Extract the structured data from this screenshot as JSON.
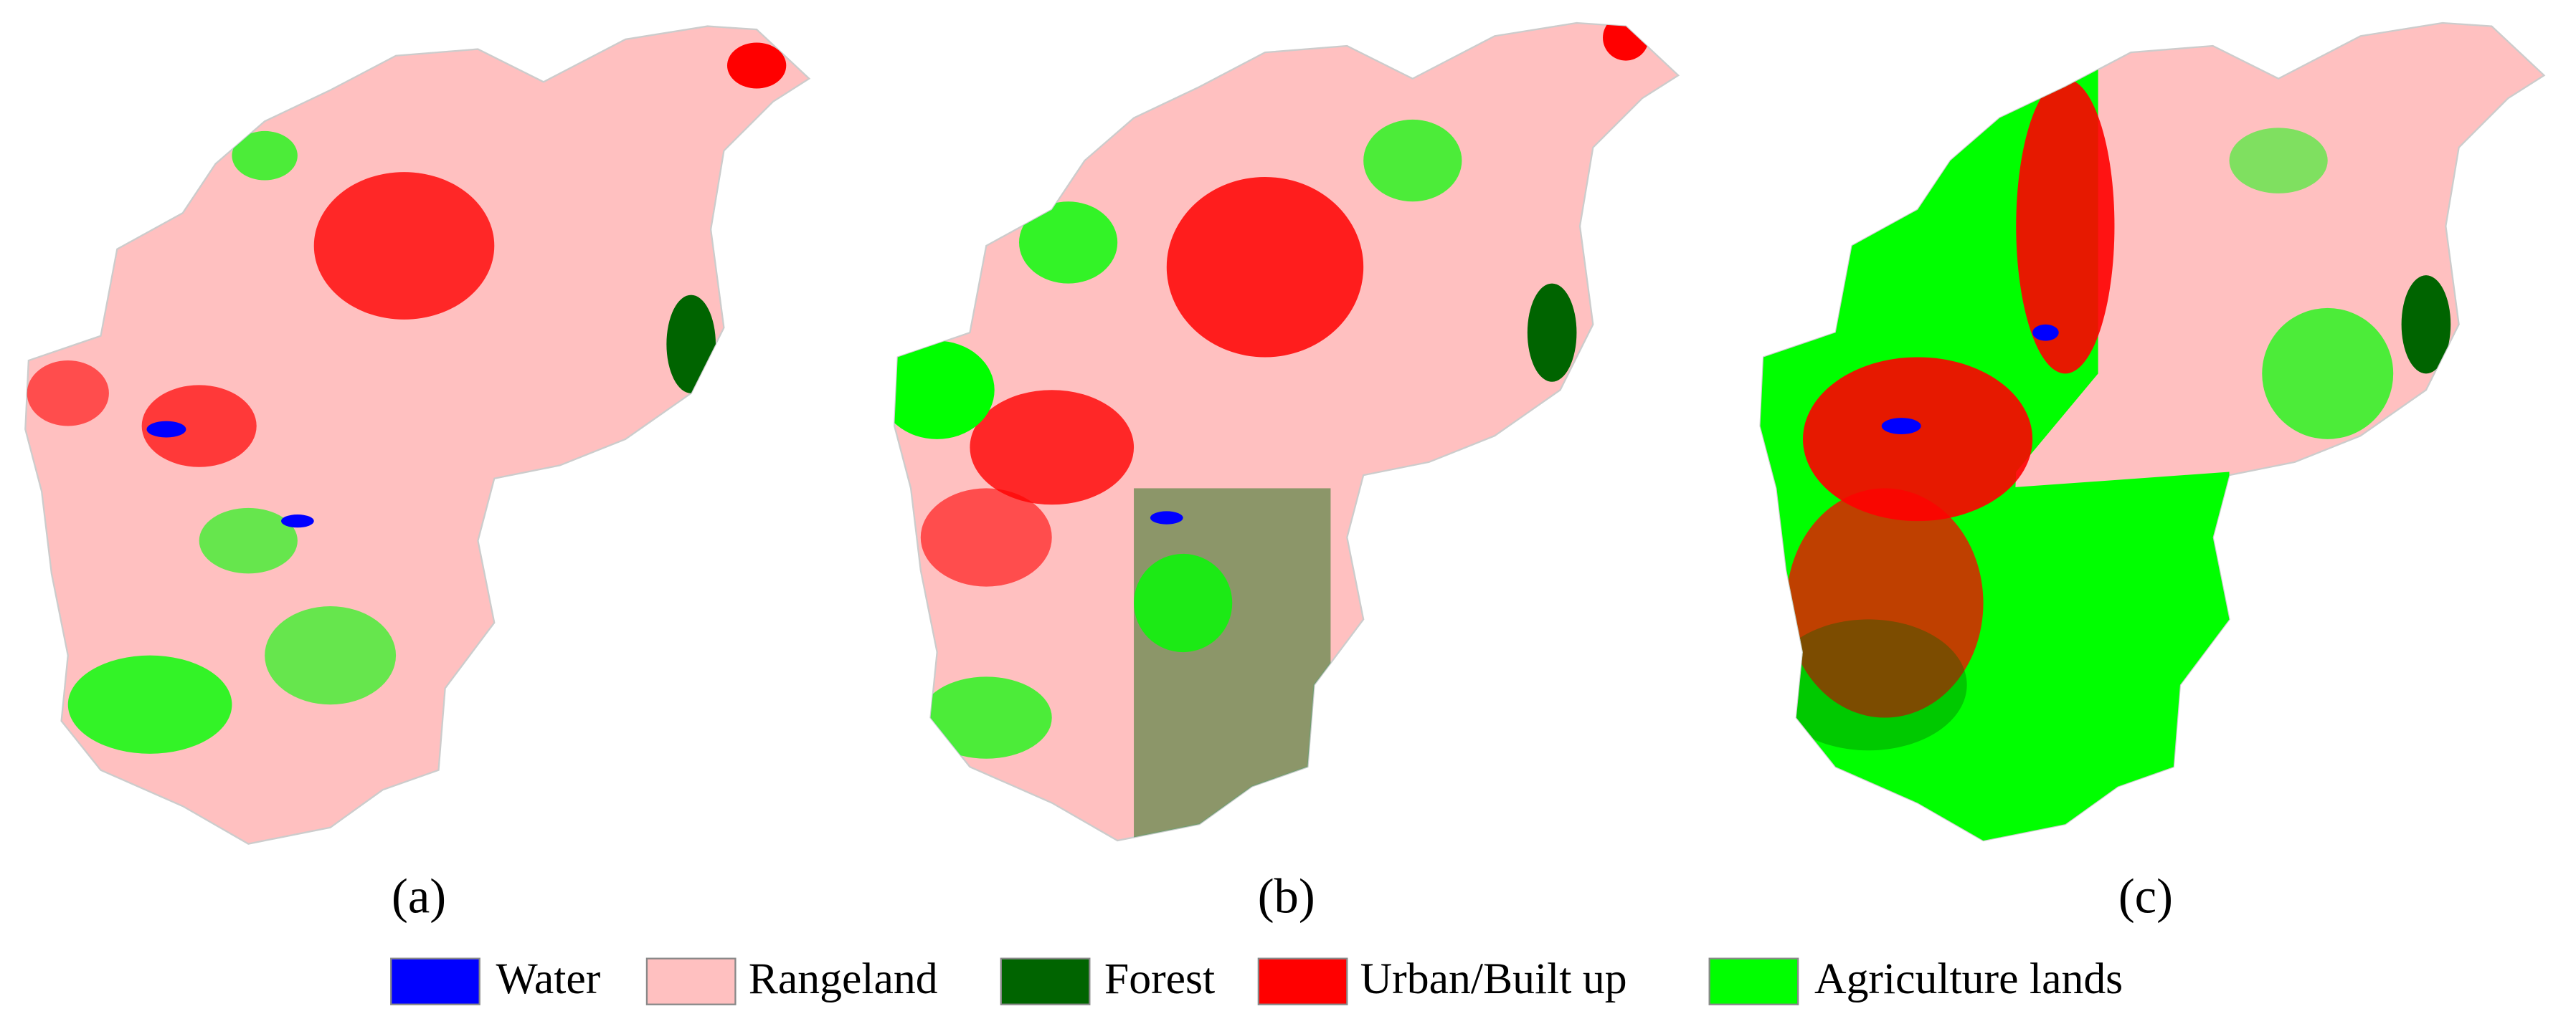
{
  "panels": [
    {
      "label": "(a)"
    },
    {
      "label": "(b)"
    },
    {
      "label": "(c)"
    }
  ],
  "legend": [
    {
      "name": "Water",
      "color": "#0000ff"
    },
    {
      "name": "Rangeland",
      "color": "#ffc0c0"
    },
    {
      "name": "Forest",
      "color": "#006400"
    },
    {
      "name": "Urban/Built up",
      "color": "#ff0000"
    },
    {
      "name": "Agriculture lands",
      "color": "#00ff00"
    }
  ]
}
